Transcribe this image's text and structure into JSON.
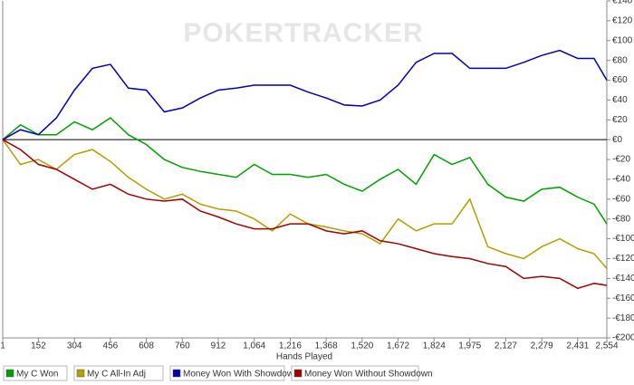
{
  "chart_data": {
    "type": "line",
    "watermark": "POKERTRACKER",
    "x_label": "Hands Played",
    "x": [
      1,
      76,
      152,
      228,
      304,
      380,
      456,
      532,
      608,
      684,
      760,
      836,
      912,
      988,
      1064,
      1140,
      1216,
      1292,
      1368,
      1444,
      1520,
      1596,
      1672,
      1748,
      1824,
      1900,
      1975,
      2051,
      2127,
      2203,
      2279,
      2355,
      2431,
      2500,
      2554
    ],
    "series": [
      {
        "name": "My C Won",
        "color": "#00a000",
        "values": [
          0,
          15,
          5,
          5,
          18,
          10,
          22,
          5,
          -5,
          -20,
          -28,
          -32,
          -35,
          -38,
          -25,
          -35,
          -35,
          -38,
          -35,
          -45,
          -52,
          -40,
          -30,
          -45,
          -15,
          -25,
          -18,
          -45,
          -58,
          -62,
          -50,
          -48,
          -58,
          -65,
          -85
        ]
      },
      {
        "name": "My C All-In Adj",
        "color": "#b0a000",
        "values": [
          0,
          -25,
          -20,
          -30,
          -15,
          -10,
          -22,
          -38,
          -50,
          -60,
          -55,
          -65,
          -70,
          -72,
          -80,
          -92,
          -75,
          -85,
          -88,
          -92,
          -95,
          -105,
          -80,
          -92,
          -85,
          -85,
          -60,
          -108,
          -115,
          -120,
          -108,
          -100,
          -110,
          -115,
          -130
        ]
      },
      {
        "name": "Money Won With Showdown",
        "color": "#0000b0",
        "values": [
          0,
          10,
          5,
          22,
          50,
          72,
          76,
          52,
          50,
          28,
          32,
          42,
          50,
          52,
          55,
          55,
          55,
          48,
          42,
          35,
          34,
          40,
          55,
          78,
          87,
          87,
          72,
          72,
          72,
          78,
          85,
          90,
          82,
          82,
          60
        ]
      },
      {
        "name": "Money Won Without Showdown",
        "color": "#a00000",
        "values": [
          0,
          -10,
          -25,
          -30,
          -40,
          -50,
          -45,
          -55,
          -60,
          -62,
          -60,
          -72,
          -78,
          -85,
          -90,
          -90,
          -85,
          -85,
          -92,
          -95,
          -92,
          -102,
          -105,
          -110,
          -115,
          -118,
          -120,
          -125,
          -128,
          -140,
          -138,
          -140,
          -150,
          -145,
          -147
        ]
      }
    ],
    "xlim": [
      1,
      2554
    ],
    "xticks": [
      1,
      152,
      304,
      456,
      608,
      760,
      912,
      {
        "value": 1064,
        "label": "1,064"
      },
      {
        "value": 1216,
        "label": "1,216"
      },
      {
        "value": 1368,
        "label": "1,368"
      },
      {
        "value": 1520,
        "label": "1,520"
      },
      {
        "value": 1672,
        "label": "1,672"
      },
      {
        "value": 1824,
        "label": "1,824"
      },
      {
        "value": 1975,
        "label": "1,975"
      },
      {
        "value": 2127,
        "label": "2,127"
      },
      {
        "value": 2279,
        "label": "2,279"
      },
      {
        "value": 2431,
        "label": "2,431"
      },
      {
        "value": 2554,
        "label": "2,554"
      }
    ],
    "ylim": [
      -200,
      140
    ],
    "yticks": [
      {
        "value": 140,
        "label": "€140"
      },
      {
        "value": 120,
        "label": "€120"
      },
      {
        "value": 100,
        "label": "€100"
      },
      {
        "value": 80,
        "label": "€80"
      },
      {
        "value": 60,
        "label": "€60"
      },
      {
        "value": 40,
        "label": "€40"
      },
      {
        "value": 20,
        "label": "€20"
      },
      {
        "value": 0,
        "label": "€0"
      },
      {
        "value": -20,
        "label": "-€20"
      },
      {
        "value": -40,
        "label": "-€40"
      },
      {
        "value": -60,
        "label": "-€60"
      },
      {
        "value": -80,
        "label": "-€80"
      },
      {
        "value": -100,
        "label": "-€100"
      },
      {
        "value": -120,
        "label": "-€120"
      },
      {
        "value": -140,
        "label": "-€140"
      },
      {
        "value": -160,
        "label": "-€160"
      },
      {
        "value": -180,
        "label": "-€180"
      },
      {
        "value": -200,
        "label": "-€200"
      }
    ]
  }
}
